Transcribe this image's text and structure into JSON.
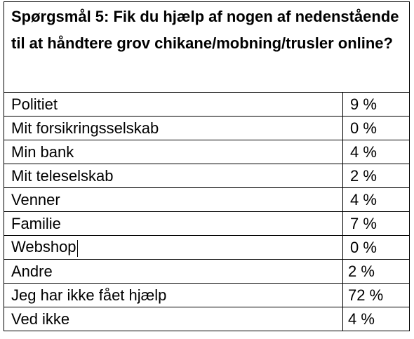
{
  "survey": {
    "question": "Spørgsmål 5: Fik du hjælp af nogen af nedenstående til at håndtere grov chikane/mobning/trusler online?",
    "rows": [
      {
        "label": "Politiet",
        "value": "9 %"
      },
      {
        "label": "Mit forsikringsselskab",
        "value": "0 %"
      },
      {
        "label": "Min bank",
        "value": "4 %"
      },
      {
        "label": "Mit teleselskab",
        "value": "2 %"
      },
      {
        "label": "Venner",
        "value": "4 %"
      },
      {
        "label": "Familie",
        "value": "7 %"
      },
      {
        "label": "Webshop",
        "value": "0 %"
      },
      {
        "label": "Andre",
        "value": "2 %"
      },
      {
        "label": "Jeg har ikke fået hjælp",
        "value": "72 %"
      },
      {
        "label": "Ved ikke",
        "value": "4 %"
      }
    ]
  }
}
